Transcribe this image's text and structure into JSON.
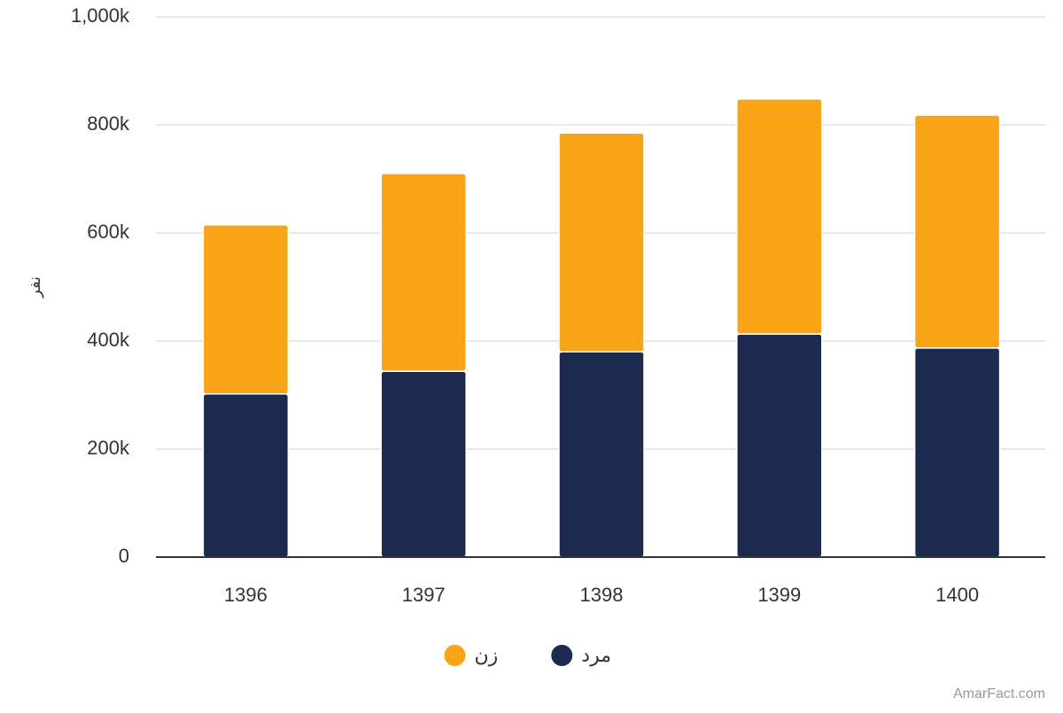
{
  "chart_data": {
    "type": "stacked_bar",
    "y_label": "نفر",
    "categories": [
      "1396",
      "1397",
      "1398",
      "1399",
      "1400"
    ],
    "series": [
      {
        "name": "مرد",
        "color": "#1b2a4e",
        "values": [
          302000,
          344000,
          380000,
          413000,
          387000
        ]
      },
      {
        "name": "زن",
        "color": "#f9a416",
        "values": [
          313000,
          366000,
          405000,
          435000,
          431000
        ]
      }
    ],
    "ylim": [
      0,
      1000000
    ],
    "yticks": [
      0,
      {
        "value": 200000,
        "label": "200k"
      },
      {
        "value": 400000,
        "label": "400k"
      },
      {
        "value": 600000,
        "label": "600k"
      },
      {
        "value": 800000,
        "label": "800k"
      },
      {
        "value": 1000000,
        "label": "1,000k"
      }
    ],
    "grid": true,
    "credit": "AmarFact.com"
  }
}
